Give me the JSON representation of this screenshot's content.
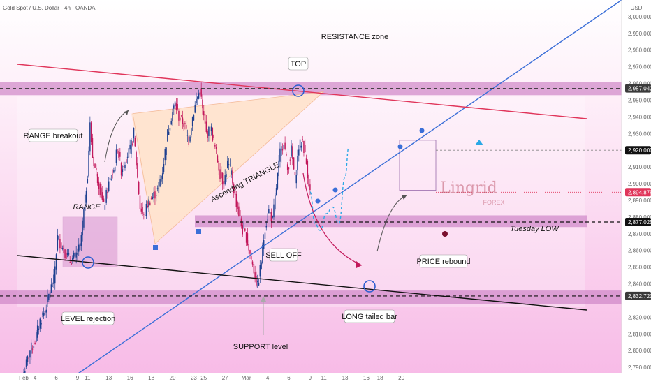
{
  "header": {
    "title": "Gold Spot / U.S. Dollar · 4h · OANDA",
    "currency": "USD"
  },
  "chart_data": {
    "type": "candlestick",
    "ylim": [
      2780,
      3010
    ],
    "yticks": [
      {
        "v": 3000,
        "label": "3,000.000"
      },
      {
        "v": 2990,
        "label": "2,990.000"
      },
      {
        "v": 2980,
        "label": "2,980.000"
      },
      {
        "v": 2970,
        "label": "2,970.000"
      },
      {
        "v": 2960,
        "label": "2,960.000"
      },
      {
        "v": 2950,
        "label": "2,950.000"
      },
      {
        "v": 2940,
        "label": "2,940.000"
      },
      {
        "v": 2930,
        "label": "2,930.000"
      },
      {
        "v": 2910,
        "label": "2,910.000"
      },
      {
        "v": 2900,
        "label": "2,900.000"
      },
      {
        "v": 2890,
        "label": "2,890.000"
      },
      {
        "v": 2880,
        "label": "2,880.000"
      },
      {
        "v": 2870,
        "label": "2,870.000"
      },
      {
        "v": 2860,
        "label": "2,860.000"
      },
      {
        "v": 2850,
        "label": "2,850.000"
      },
      {
        "v": 2840,
        "label": "2,840.000"
      },
      {
        "v": 2820,
        "label": "2,820.000"
      },
      {
        "v": 2810,
        "label": "2,810.000"
      },
      {
        "v": 2800,
        "label": "2,800.000"
      },
      {
        "v": 2790,
        "label": "2,790.000"
      }
    ],
    "price_labels": [
      {
        "v": 2957.042,
        "label": "2,957.042",
        "color": "#3a3a3a"
      },
      {
        "v": 2920.0,
        "label": "2,920.000",
        "color": "#111111"
      },
      {
        "v": 2894.875,
        "label": "2,894.875",
        "color": "#e0355a"
      },
      {
        "v": 2877.025,
        "label": "2,877.025",
        "color": "#111111"
      },
      {
        "v": 2832.72,
        "label": "2,832.720",
        "color": "#3a3a3a"
      }
    ],
    "xticks": [
      {
        "idx": 0,
        "label": "Feb"
      },
      {
        "idx": 9,
        "label": "4"
      },
      {
        "idx": 26,
        "label": "6"
      },
      {
        "idx": 43,
        "label": "9"
      },
      {
        "idx": 51,
        "label": "11"
      },
      {
        "idx": 68,
        "label": "13"
      },
      {
        "idx": 85,
        "label": "16"
      },
      {
        "idx": 102,
        "label": "18"
      },
      {
        "idx": 119,
        "label": "20"
      },
      {
        "idx": 136,
        "label": "23"
      },
      {
        "idx": 144,
        "label": "25"
      },
      {
        "idx": 161,
        "label": "27"
      },
      {
        "idx": 178,
        "label": "Mar"
      },
      {
        "idx": 195,
        "label": "4"
      },
      {
        "idx": 212,
        "label": "6"
      },
      {
        "idx": 229,
        "label": "9"
      },
      {
        "idx": 240,
        "label": "11"
      },
      {
        "idx": 257,
        "label": "13"
      },
      {
        "idx": 274,
        "label": "16"
      },
      {
        "idx": 285,
        "label": "18"
      },
      {
        "idx": 302,
        "label": "20"
      }
    ],
    "anchors": [
      {
        "i": 0,
        "p": 2787
      },
      {
        "i": 5,
        "p": 2800
      },
      {
        "i": 9,
        "p": 2806
      },
      {
        "i": 13,
        "p": 2818
      },
      {
        "i": 17,
        "p": 2824
      },
      {
        "i": 21,
        "p": 2836
      },
      {
        "i": 24,
        "p": 2842
      },
      {
        "i": 27,
        "p": 2868
      },
      {
        "i": 32,
        "p": 2860
      },
      {
        "i": 37,
        "p": 2854
      },
      {
        "i": 41,
        "p": 2856
      },
      {
        "i": 45,
        "p": 2862
      },
      {
        "i": 49,
        "p": 2890
      },
      {
        "i": 51,
        "p": 2906
      },
      {
        "i": 53,
        "p": 2935
      },
      {
        "i": 55,
        "p": 2916
      },
      {
        "i": 60,
        "p": 2900
      },
      {
        "i": 64,
        "p": 2886
      },
      {
        "i": 68,
        "p": 2900
      },
      {
        "i": 72,
        "p": 2908
      },
      {
        "i": 75,
        "p": 2922
      },
      {
        "i": 78,
        "p": 2908
      },
      {
        "i": 82,
        "p": 2916
      },
      {
        "i": 85,
        "p": 2920
      },
      {
        "i": 88,
        "p": 2930
      },
      {
        "i": 90,
        "p": 2912
      },
      {
        "i": 93,
        "p": 2886
      },
      {
        "i": 96,
        "p": 2880
      },
      {
        "i": 99,
        "p": 2888
      },
      {
        "i": 103,
        "p": 2892
      },
      {
        "i": 107,
        "p": 2896
      },
      {
        "i": 111,
        "p": 2908
      },
      {
        "i": 115,
        "p": 2930
      },
      {
        "i": 118,
        "p": 2940
      },
      {
        "i": 121,
        "p": 2948
      },
      {
        "i": 124,
        "p": 2940
      },
      {
        "i": 128,
        "p": 2936
      },
      {
        "i": 132,
        "p": 2926
      },
      {
        "i": 135,
        "p": 2940
      },
      {
        "i": 138,
        "p": 2950
      },
      {
        "i": 141,
        "p": 2956
      },
      {
        "i": 143,
        "p": 2944
      },
      {
        "i": 146,
        "p": 2930
      },
      {
        "i": 150,
        "p": 2932
      },
      {
        "i": 154,
        "p": 2918
      },
      {
        "i": 157,
        "p": 2906
      },
      {
        "i": 160,
        "p": 2900
      },
      {
        "i": 163,
        "p": 2912
      },
      {
        "i": 166,
        "p": 2906
      },
      {
        "i": 169,
        "p": 2892
      },
      {
        "i": 172,
        "p": 2882
      },
      {
        "i": 175,
        "p": 2872
      },
      {
        "i": 178,
        "p": 2868
      },
      {
        "i": 181,
        "p": 2858
      },
      {
        "i": 184,
        "p": 2848
      },
      {
        "i": 187,
        "p": 2838
      },
      {
        "i": 190,
        "p": 2854
      },
      {
        "i": 193,
        "p": 2874
      },
      {
        "i": 196,
        "p": 2884
      },
      {
        "i": 199,
        "p": 2878
      },
      {
        "i": 202,
        "p": 2898
      },
      {
        "i": 205,
        "p": 2918
      },
      {
        "i": 208,
        "p": 2926
      },
      {
        "i": 211,
        "p": 2908
      },
      {
        "i": 214,
        "p": 2920
      },
      {
        "i": 217,
        "p": 2902
      },
      {
        "i": 220,
        "p": 2922
      },
      {
        "i": 223,
        "p": 2926
      },
      {
        "i": 226,
        "p": 2912
      },
      {
        "i": 229,
        "p": 2895
      }
    ],
    "projection": [
      {
        "i": 229,
        "p": 2895
      },
      {
        "i": 233,
        "p": 2876
      },
      {
        "i": 237,
        "p": 2872
      },
      {
        "i": 242,
        "p": 2882
      },
      {
        "i": 247,
        "p": 2886
      },
      {
        "i": 252,
        "p": 2876
      },
      {
        "i": 257,
        "p": 2904
      },
      {
        "i": 260,
        "p": 2922
      }
    ]
  },
  "annotations": {
    "resistance_zone": "RESISTANCE zone",
    "top": "TOP",
    "range_breakout": "RANGE breakout",
    "range": "RANGE",
    "ascending_triangle": "Ascending TRIANGLE",
    "sell_off": "SELL OFF",
    "price_rebound": "PRICE rebound",
    "level_rejection": "LEVEL rejection",
    "long_tailed_bar": "LONG tailed bar",
    "support_level": "SUPPORT level",
    "tuesday_low": "Tuesday LOW",
    "watermark_main": "Lingrid",
    "watermark_sub": "FOREX"
  },
  "colors": {
    "bull": "#1d3f8f",
    "bear": "#c2185b",
    "trendline": "#3b6fd8",
    "resistance_line": "#e0355a",
    "support_line": "#111111",
    "zone": "#cf86c8",
    "background_tint": "#fbd6f0",
    "triangle_fill": "#ffe4cf"
  }
}
